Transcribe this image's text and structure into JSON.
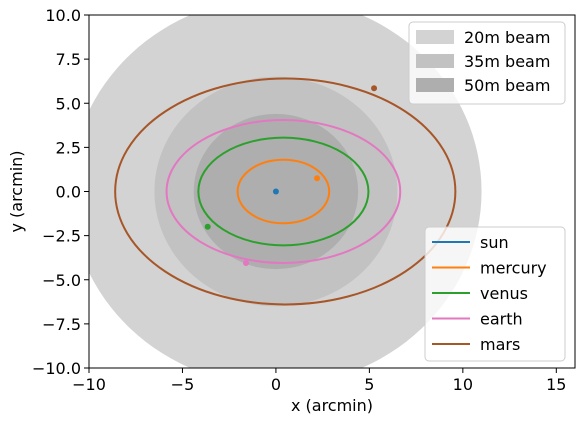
{
  "chart_data": {
    "type": "line",
    "xlabel": "x (arcmin)",
    "ylabel": "y (arcmin)",
    "xlim": [
      -10,
      16
    ],
    "ylim": [
      -10,
      10
    ],
    "xticks": [
      -10,
      -5,
      0,
      5,
      10,
      15
    ],
    "yticks": [
      -10.0,
      -7.5,
      -5.0,
      -2.5,
      0.0,
      2.5,
      5.0,
      7.5,
      10.0
    ],
    "xtick_labels": [
      "−10",
      "−5",
      "0",
      "5",
      "10",
      "15"
    ],
    "ytick_labels": [
      "−10.0",
      "−7.5",
      "−5.0",
      "−2.5",
      "0.0",
      "2.5",
      "5.0",
      "7.5",
      "10.0"
    ],
    "grid": false,
    "beams": [
      {
        "name": "20m beam",
        "center": [
          0,
          0
        ],
        "radius": 11,
        "color": "#d3d3d3"
      },
      {
        "name": "35m beam",
        "center": [
          0,
          0
        ],
        "radius": 6.5,
        "color": "#c2c2c2"
      },
      {
        "name": "50m beam",
        "center": [
          0,
          0
        ],
        "radius": 4.4,
        "color": "#aeaeae"
      }
    ],
    "beam_legend_placement": "upper-right",
    "orbit_legend_placement": "lower-right",
    "series": [
      {
        "name": "sun",
        "color": "#1f77b4",
        "center": [
          0,
          0
        ],
        "rx": 0,
        "ry": 0,
        "marker": [
          0,
          0
        ]
      },
      {
        "name": "mercury",
        "color": "#ff7f0e",
        "center": [
          0.4,
          0
        ],
        "rx": 2.45,
        "ry": 1.8,
        "marker": [
          2.2,
          0.75
        ]
      },
      {
        "name": "venus",
        "color": "#2ca02c",
        "center": [
          0.4,
          0
        ],
        "rx": 4.55,
        "ry": 3.05,
        "marker": [
          -3.65,
          -2.0
        ]
      },
      {
        "name": "earth",
        "color": "#e377c2",
        "center": [
          0.4,
          0
        ],
        "rx": 6.25,
        "ry": 4.05,
        "marker": [
          -1.6,
          -4.05
        ]
      },
      {
        "name": "mars",
        "color": "#a65628",
        "center": [
          0.5,
          0
        ],
        "rx": 9.1,
        "ry": 6.4,
        "marker": [
          5.25,
          5.85
        ]
      }
    ]
  }
}
